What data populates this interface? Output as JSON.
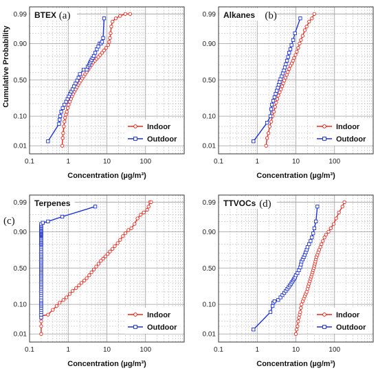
{
  "figure": {
    "background": "#ffffff",
    "grid_color": "#bdbdbd",
    "colors": {
      "indoor": "#e8261c",
      "outdoor": "#1b2fd6"
    }
  },
  "chart_data": [
    {
      "type": "line",
      "title": "BTEX",
      "panel_label": "(a)",
      "xlabel": "Concentration (µg/m³)",
      "ylabel": "Cumulative Probability",
      "xscale": "log",
      "xlim": [
        0.1,
        1000
      ],
      "yscale": "probability",
      "ylim": [
        0.01,
        0.99
      ],
      "xticks": [
        "0.1",
        "1",
        "10",
        "100"
      ],
      "yticks": [
        "0.01",
        "0.10",
        "0.50",
        "0.90",
        "0.99"
      ],
      "grid": true,
      "legend": "bottom-right",
      "series": [
        {
          "name": "Indoor",
          "color": "#e8261c",
          "x": [
            0.7,
            0.72,
            0.74,
            0.77,
            0.8,
            0.83,
            0.87,
            0.92,
            0.97,
            1.03,
            1.1,
            1.18,
            1.26,
            1.35,
            1.45,
            1.56,
            1.68,
            1.82,
            1.97,
            2.13,
            2.32,
            2.52,
            2.75,
            3.0,
            3.3,
            3.6,
            4.0,
            4.4,
            4.9,
            5.4,
            6.0,
            6.7,
            7.5,
            8.4,
            9.5,
            10.8,
            11.5,
            12.0,
            12.5,
            13,
            14,
            17,
            22,
            30,
            40
          ],
          "y": [
            0.01,
            0.02,
            0.03,
            0.05,
            0.07,
            0.09,
            0.11,
            0.13,
            0.16,
            0.19,
            0.22,
            0.25,
            0.28,
            0.31,
            0.34,
            0.37,
            0.4,
            0.43,
            0.46,
            0.49,
            0.52,
            0.55,
            0.58,
            0.61,
            0.64,
            0.67,
            0.7,
            0.73,
            0.75,
            0.77,
            0.79,
            0.81,
            0.83,
            0.85,
            0.87,
            0.89,
            0.91,
            0.93,
            0.95,
            0.97,
            0.98,
            0.985,
            0.988,
            0.99,
            0.99
          ]
        },
        {
          "name": "Outdoor",
          "color": "#1b2fd6",
          "x": [
            0.3,
            0.58,
            0.6,
            0.62,
            0.66,
            0.72,
            0.8,
            0.88,
            0.96,
            1.04,
            1.12,
            1.2,
            1.3,
            1.42,
            1.55,
            1.7,
            1.85,
            2.0,
            2.5,
            3.0,
            3.2,
            3.5,
            3.6,
            3.8,
            4.0,
            4.3,
            4.6,
            5.0,
            5.5,
            6.0,
            6.5,
            7.0,
            7.5,
            8.0,
            8.5
          ],
          "y": [
            0.015,
            0.06,
            0.08,
            0.1,
            0.13,
            0.16,
            0.19,
            0.22,
            0.25,
            0.28,
            0.31,
            0.34,
            0.37,
            0.41,
            0.45,
            0.49,
            0.53,
            0.58,
            0.64,
            0.64,
            0.68,
            0.7,
            0.72,
            0.74,
            0.76,
            0.78,
            0.8,
            0.83,
            0.86,
            0.88,
            0.9,
            0.9,
            0.91,
            0.93,
            0.985
          ]
        }
      ]
    },
    {
      "type": "line",
      "title": "Alkanes",
      "panel_label": "(b)",
      "xlabel": "Concentration (µg/m³)",
      "ylabel": "",
      "xscale": "log",
      "xlim": [
        0.1,
        1000
      ],
      "yscale": "probability",
      "ylim": [
        0.01,
        0.99
      ],
      "xticks": [
        "0.1",
        "1",
        "10",
        "100"
      ],
      "yticks": [
        "0.01",
        "0.10",
        "0.50",
        "0.90",
        "0.99"
      ],
      "grid": true,
      "legend": "bottom-right",
      "series": [
        {
          "name": "Indoor",
          "color": "#e8261c",
          "x": [
            1.7,
            1.8,
            1.95,
            2.1,
            2.3,
            2.5,
            2.7,
            2.9,
            3.1,
            3.3,
            3.5,
            3.8,
            4.1,
            4.4,
            4.7,
            5.0,
            5.4,
            5.8,
            6.2,
            6.7,
            7.2,
            7.8,
            8.4,
            9.0,
            9.8,
            10.6,
            11.5,
            12.5,
            13.5,
            15,
            17,
            19,
            22,
            26,
            30
          ],
          "y": [
            0.01,
            0.02,
            0.03,
            0.05,
            0.07,
            0.1,
            0.13,
            0.17,
            0.21,
            0.25,
            0.29,
            0.33,
            0.37,
            0.41,
            0.45,
            0.49,
            0.53,
            0.57,
            0.61,
            0.65,
            0.69,
            0.72,
            0.75,
            0.78,
            0.81,
            0.84,
            0.87,
            0.9,
            0.92,
            0.94,
            0.96,
            0.97,
            0.98,
            0.985,
            0.99
          ]
        },
        {
          "name": "Outdoor",
          "color": "#1b2fd6",
          "x": [
            0.8,
            1.8,
            2.2,
            2.3,
            2.4,
            2.6,
            2.8,
            3.0,
            3.2,
            3.4,
            3.6,
            3.8,
            4.0,
            4.3,
            4.6,
            4.9,
            5.2,
            5.5,
            5.9,
            6.3,
            6.7,
            7.2,
            7.7,
            8.5,
            9.5,
            13
          ],
          "y": [
            0.015,
            0.065,
            0.1,
            0.15,
            0.19,
            0.23,
            0.27,
            0.31,
            0.35,
            0.39,
            0.43,
            0.47,
            0.51,
            0.55,
            0.59,
            0.63,
            0.67,
            0.71,
            0.75,
            0.79,
            0.83,
            0.86,
            0.89,
            0.92,
            0.95,
            0.985
          ]
        }
      ]
    },
    {
      "type": "line",
      "title": "Terpenes",
      "panel_label": "(c)",
      "xlabel": "Concentration (µg/m³)",
      "ylabel": "",
      "xscale": "log",
      "xlim": [
        0.1,
        1000
      ],
      "yscale": "probability",
      "ylim": [
        0.01,
        0.99
      ],
      "xticks": [
        "0.1",
        "1",
        "10",
        "100"
      ],
      "yticks": [
        "0.01",
        "0.10",
        "0.50",
        "0.90",
        "0.99"
      ],
      "grid": true,
      "legend": "bottom-right",
      "series": [
        {
          "name": "Indoor",
          "color": "#e8261c",
          "x": [
            0.2,
            0.2,
            0.2,
            0.2,
            0.3,
            0.4,
            0.5,
            0.6,
            0.75,
            0.9,
            1.1,
            1.3,
            1.6,
            1.9,
            2.2,
            2.6,
            3.0,
            3.5,
            4.0,
            4.6,
            5.3,
            6.1,
            7.0,
            8.0,
            9.2,
            10.5,
            12,
            14,
            16,
            19,
            22,
            26,
            30,
            36,
            43,
            52,
            62,
            75,
            90,
            110,
            120,
            130,
            140
          ],
          "y": [
            0.01,
            0.02,
            0.03,
            0.045,
            0.05,
            0.07,
            0.09,
            0.11,
            0.13,
            0.15,
            0.18,
            0.21,
            0.24,
            0.27,
            0.3,
            0.33,
            0.36,
            0.4,
            0.44,
            0.48,
            0.52,
            0.56,
            0.6,
            0.63,
            0.66,
            0.69,
            0.72,
            0.75,
            0.78,
            0.81,
            0.84,
            0.87,
            0.89,
            0.91,
            0.92,
            0.94,
            0.96,
            0.97,
            0.975,
            0.98,
            0.985,
            0.99,
            0.99
          ]
        },
        {
          "name": "Outdoor",
          "color": "#1b2fd6",
          "x": [
            0.2,
            0.2,
            0.2,
            0.2,
            0.2,
            0.2,
            0.2,
            0.2,
            0.2,
            0.2,
            0.2,
            0.2,
            0.2,
            0.2,
            0.2,
            0.2,
            0.2,
            0.2,
            0.2,
            0.2,
            0.2,
            0.2,
            0.2,
            0.2,
            0.2,
            0.2,
            0.2,
            0.2,
            0.2,
            0.2,
            0.2,
            0.2,
            0.2,
            0.2,
            0.2,
            0.2,
            0.2,
            0.2,
            0.2,
            0.2,
            0.2,
            0.2,
            0.2,
            0.2,
            0.2,
            0.2,
            0.2,
            0.2,
            0.2,
            0.2,
            0.2,
            0.2,
            0.2,
            0.2,
            0.2,
            0.2,
            0.2,
            0.2,
            0.2,
            0.2,
            0.2,
            0.2,
            0.2,
            0.2,
            0.2,
            0.22,
            0.3,
            0.7,
            5
          ],
          "y": [
            0.04,
            0.05,
            0.06,
            0.07,
            0.08,
            0.09,
            0.1,
            0.11,
            0.12,
            0.13,
            0.15,
            0.17,
            0.19,
            0.21,
            0.23,
            0.25,
            0.27,
            0.29,
            0.31,
            0.33,
            0.35,
            0.37,
            0.39,
            0.41,
            0.43,
            0.45,
            0.47,
            0.49,
            0.51,
            0.53,
            0.55,
            0.57,
            0.59,
            0.61,
            0.63,
            0.65,
            0.67,
            0.69,
            0.71,
            0.73,
            0.75,
            0.77,
            0.79,
            0.8,
            0.81,
            0.82,
            0.83,
            0.84,
            0.85,
            0.86,
            0.87,
            0.875,
            0.88,
            0.885,
            0.89,
            0.895,
            0.9,
            0.905,
            0.91,
            0.915,
            0.92,
            0.925,
            0.93,
            0.935,
            0.94,
            0.945,
            0.95,
            0.965,
            0.985
          ]
        }
      ]
    },
    {
      "type": "line",
      "title": "TTVOCs",
      "panel_label": "(d)",
      "xlabel": "Concentration (µg/m³)",
      "ylabel": "",
      "xscale": "log",
      "xlim": [
        0.1,
        1000
      ],
      "yscale": "probability",
      "ylim": [
        0.01,
        0.99
      ],
      "xticks": [
        "0.1",
        "1",
        "10",
        "100"
      ],
      "yticks": [
        "0.01",
        "0.10",
        "0.50",
        "0.90",
        "0.99"
      ],
      "grid": true,
      "legend": "bottom-right",
      "series": [
        {
          "name": "Indoor",
          "color": "#e8261c",
          "x": [
            10,
            10.5,
            11,
            11.5,
            12,
            12.5,
            13,
            13.5,
            14,
            15,
            16,
            17,
            18,
            19,
            20,
            21,
            22,
            23,
            24,
            25,
            26,
            27,
            28,
            29,
            30,
            31,
            32,
            33,
            34,
            36,
            38,
            40,
            43,
            46,
            50,
            55,
            60,
            70,
            80,
            95,
            110,
            130,
            160,
            180
          ],
          "y": [
            0.01,
            0.015,
            0.02,
            0.03,
            0.04,
            0.05,
            0.06,
            0.08,
            0.1,
            0.12,
            0.14,
            0.16,
            0.18,
            0.2,
            0.23,
            0.26,
            0.29,
            0.32,
            0.35,
            0.38,
            0.41,
            0.44,
            0.47,
            0.5,
            0.53,
            0.56,
            0.59,
            0.62,
            0.65,
            0.68,
            0.71,
            0.74,
            0.77,
            0.8,
            0.83,
            0.86,
            0.88,
            0.9,
            0.92,
            0.94,
            0.96,
            0.975,
            0.985,
            0.99
          ]
        },
        {
          "name": "Outdoor",
          "color": "#1b2fd6",
          "x": [
            0.8,
            2.2,
            2.5,
            2.6,
            2.8,
            3.5,
            4.0,
            4.5,
            5.0,
            5.5,
            6.0,
            6.5,
            7.0,
            7.5,
            8.0,
            8.5,
            9.0,
            9.5,
            10,
            11,
            12,
            13,
            13.5,
            14,
            15,
            16,
            17,
            18,
            19,
            20,
            22,
            24,
            26,
            28,
            30,
            33,
            36
          ],
          "y": [
            0.015,
            0.06,
            0.09,
            0.11,
            0.12,
            0.13,
            0.15,
            0.17,
            0.19,
            0.21,
            0.23,
            0.25,
            0.27,
            0.29,
            0.31,
            0.33,
            0.35,
            0.37,
            0.4,
            0.43,
            0.47,
            0.51,
            0.55,
            0.59,
            0.62,
            0.65,
            0.68,
            0.71,
            0.74,
            0.77,
            0.8,
            0.83,
            0.86,
            0.89,
            0.92,
            0.95,
            0.985
          ]
        }
      ]
    }
  ]
}
